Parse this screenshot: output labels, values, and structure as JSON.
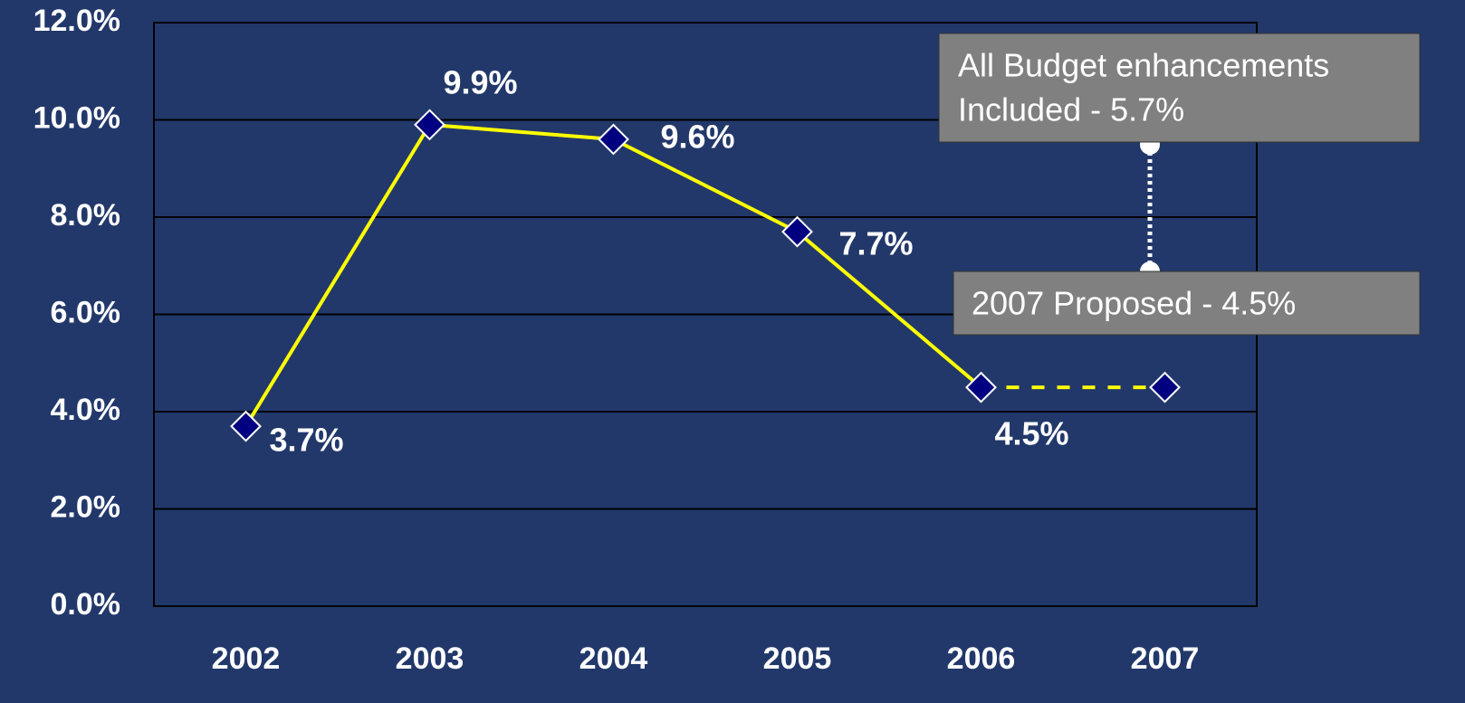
{
  "chart_data": {
    "type": "line",
    "categories": [
      "2002",
      "2003",
      "2004",
      "2005",
      "2006",
      "2007"
    ],
    "series": [
      {
        "color": "#ffff00",
        "marker_color": "#000080",
        "values": [
          3.7,
          9.9,
          9.6,
          7.7,
          4.5,
          4.5
        ],
        "value_labels": [
          "3.7%",
          "9.9%",
          "9.6%",
          "7.7%",
          "4.5%",
          null
        ]
      }
    ],
    "dashed_segments": [
      4
    ],
    "ylim": [
      0,
      12
    ],
    "yticks": [
      {
        "value": 0,
        "label": "0.0%"
      },
      {
        "value": 2,
        "label": "2.0%"
      },
      {
        "value": 4,
        "label": "4.0%"
      },
      {
        "value": 6,
        "label": "6.0%"
      },
      {
        "value": 8,
        "label": "8.0%"
      },
      {
        "value": 10,
        "label": "10.0%"
      },
      {
        "value": 12,
        "label": "12.0%"
      }
    ],
    "grid": true,
    "annotations": [
      {
        "text": [
          "All Budget enhancements",
          "Included  - 5.7%"
        ]
      },
      {
        "text": "2007 Proposed - 4.5%"
      }
    ]
  }
}
